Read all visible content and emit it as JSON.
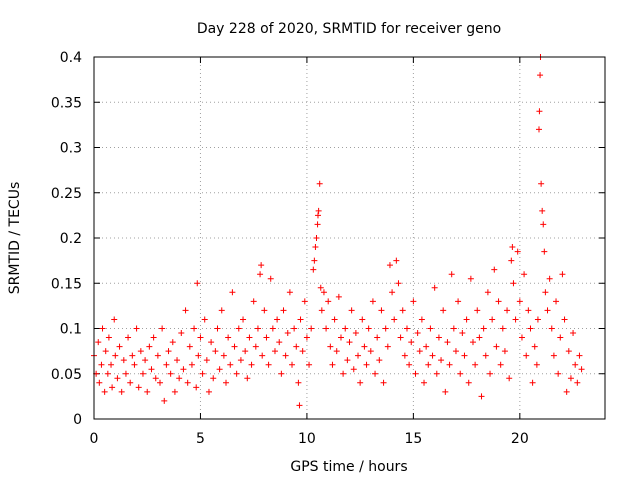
{
  "chart_data": {
    "type": "scatter",
    "title": "Day 228 of 2020, SRMTID for receiver geno",
    "xlabel": "GPS time / hours",
    "ylabel": "SRMTID / TECUs",
    "xlim": [
      0,
      24
    ],
    "ylim": [
      0,
      0.4
    ],
    "grid": true,
    "marker": "+",
    "series_color": "#ff0000",
    "x_ticks": [
      0,
      5,
      10,
      15,
      20
    ],
    "x_tick_labels": [
      "0",
      "5",
      "10",
      "15",
      "20"
    ],
    "y_ticks": [
      0,
      0.05,
      0.1,
      0.15,
      0.2,
      0.25,
      0.3,
      0.35,
      0.4
    ],
    "y_tick_labels": [
      "0",
      "0.05",
      "0.1",
      "0.15",
      "0.2",
      "0.25",
      "0.3",
      "0.35",
      "0.4"
    ],
    "series": [
      {
        "name": "SRMTID",
        "points": [
          [
            0.0,
            0.07
          ],
          [
            0.1,
            0.05
          ],
          [
            0.2,
            0.085
          ],
          [
            0.25,
            0.04
          ],
          [
            0.35,
            0.06
          ],
          [
            0.4,
            0.1
          ],
          [
            0.5,
            0.03
          ],
          [
            0.55,
            0.075
          ],
          [
            0.65,
            0.05
          ],
          [
            0.7,
            0.09
          ],
          [
            0.8,
            0.06
          ],
          [
            0.85,
            0.035
          ],
          [
            0.95,
            0.11
          ],
          [
            1.0,
            0.07
          ],
          [
            1.1,
            0.045
          ],
          [
            1.2,
            0.08
          ],
          [
            1.3,
            0.03
          ],
          [
            1.4,
            0.065
          ],
          [
            1.5,
            0.05
          ],
          [
            1.6,
            0.09
          ],
          [
            1.7,
            0.04
          ],
          [
            1.8,
            0.07
          ],
          [
            1.9,
            0.06
          ],
          [
            2.0,
            0.1
          ],
          [
            2.1,
            0.035
          ],
          [
            2.2,
            0.075
          ],
          [
            2.3,
            0.05
          ],
          [
            2.4,
            0.065
          ],
          [
            2.5,
            0.03
          ],
          [
            2.6,
            0.08
          ],
          [
            2.7,
            0.055
          ],
          [
            2.8,
            0.09
          ],
          [
            2.9,
            0.045
          ],
          [
            3.0,
            0.07
          ],
          [
            3.1,
            0.04
          ],
          [
            3.2,
            0.1
          ],
          [
            3.3,
            0.02
          ],
          [
            3.4,
            0.06
          ],
          [
            3.5,
            0.075
          ],
          [
            3.6,
            0.05
          ],
          [
            3.7,
            0.085
          ],
          [
            3.8,
            0.03
          ],
          [
            3.9,
            0.065
          ],
          [
            4.0,
            0.045
          ],
          [
            4.1,
            0.095
          ],
          [
            4.2,
            0.055
          ],
          [
            4.3,
            0.12
          ],
          [
            4.4,
            0.04
          ],
          [
            4.5,
            0.08
          ],
          [
            4.6,
            0.06
          ],
          [
            4.7,
            0.1
          ],
          [
            4.8,
            0.035
          ],
          [
            4.85,
            0.15
          ],
          [
            4.9,
            0.07
          ],
          [
            5.0,
            0.09
          ],
          [
            5.1,
            0.05
          ],
          [
            5.2,
            0.11
          ],
          [
            5.3,
            0.065
          ],
          [
            5.4,
            0.03
          ],
          [
            5.5,
            0.085
          ],
          [
            5.6,
            0.045
          ],
          [
            5.7,
            0.075
          ],
          [
            5.8,
            0.1
          ],
          [
            5.9,
            0.055
          ],
          [
            6.0,
            0.12
          ],
          [
            6.1,
            0.07
          ],
          [
            6.2,
            0.04
          ],
          [
            6.3,
            0.09
          ],
          [
            6.4,
            0.06
          ],
          [
            6.5,
            0.14
          ],
          [
            6.6,
            0.08
          ],
          [
            6.7,
            0.05
          ],
          [
            6.8,
            0.1
          ],
          [
            6.9,
            0.065
          ],
          [
            7.0,
            0.11
          ],
          [
            7.1,
            0.075
          ],
          [
            7.2,
            0.045
          ],
          [
            7.3,
            0.09
          ],
          [
            7.4,
            0.06
          ],
          [
            7.5,
            0.13
          ],
          [
            7.6,
            0.08
          ],
          [
            7.7,
            0.1
          ],
          [
            7.8,
            0.16
          ],
          [
            7.85,
            0.17
          ],
          [
            7.9,
            0.07
          ],
          [
            8.0,
            0.12
          ],
          [
            8.1,
            0.09
          ],
          [
            8.2,
            0.06
          ],
          [
            8.3,
            0.155
          ],
          [
            8.4,
            0.1
          ],
          [
            8.5,
            0.075
          ],
          [
            8.6,
            0.11
          ],
          [
            8.7,
            0.085
          ],
          [
            8.8,
            0.05
          ],
          [
            8.9,
            0.12
          ],
          [
            9.0,
            0.07
          ],
          [
            9.1,
            0.095
          ],
          [
            9.2,
            0.14
          ],
          [
            9.3,
            0.06
          ],
          [
            9.4,
            0.1
          ],
          [
            9.5,
            0.08
          ],
          [
            9.6,
            0.04
          ],
          [
            9.65,
            0.015
          ],
          [
            9.7,
            0.11
          ],
          [
            9.8,
            0.075
          ],
          [
            9.9,
            0.13
          ],
          [
            10.0,
            0.09
          ],
          [
            10.1,
            0.06
          ],
          [
            10.2,
            0.1
          ],
          [
            10.3,
            0.165
          ],
          [
            10.35,
            0.175
          ],
          [
            10.4,
            0.19
          ],
          [
            10.45,
            0.2
          ],
          [
            10.5,
            0.215
          ],
          [
            10.52,
            0.225
          ],
          [
            10.55,
            0.23
          ],
          [
            10.6,
            0.26
          ],
          [
            10.65,
            0.145
          ],
          [
            10.7,
            0.12
          ],
          [
            10.8,
            0.14
          ],
          [
            10.9,
            0.1
          ],
          [
            11.0,
            0.13
          ],
          [
            11.1,
            0.08
          ],
          [
            11.2,
            0.06
          ],
          [
            11.3,
            0.11
          ],
          [
            11.4,
            0.075
          ],
          [
            11.5,
            0.135
          ],
          [
            11.6,
            0.09
          ],
          [
            11.7,
            0.05
          ],
          [
            11.8,
            0.1
          ],
          [
            11.9,
            0.065
          ],
          [
            12.0,
            0.085
          ],
          [
            12.1,
            0.12
          ],
          [
            12.2,
            0.055
          ],
          [
            12.3,
            0.095
          ],
          [
            12.4,
            0.07
          ],
          [
            12.5,
            0.04
          ],
          [
            12.6,
            0.11
          ],
          [
            12.7,
            0.08
          ],
          [
            12.8,
            0.06
          ],
          [
            12.9,
            0.1
          ],
          [
            13.0,
            0.075
          ],
          [
            13.1,
            0.13
          ],
          [
            13.2,
            0.05
          ],
          [
            13.3,
            0.09
          ],
          [
            13.4,
            0.065
          ],
          [
            13.5,
            0.12
          ],
          [
            13.6,
            0.04
          ],
          [
            13.7,
            0.1
          ],
          [
            13.8,
            0.08
          ],
          [
            13.9,
            0.17
          ],
          [
            14.0,
            0.14
          ],
          [
            14.1,
            0.11
          ],
          [
            14.2,
            0.175
          ],
          [
            14.3,
            0.15
          ],
          [
            14.4,
            0.09
          ],
          [
            14.5,
            0.12
          ],
          [
            14.6,
            0.07
          ],
          [
            14.7,
            0.1
          ],
          [
            14.8,
            0.06
          ],
          [
            14.9,
            0.085
          ],
          [
            15.0,
            0.13
          ],
          [
            15.1,
            0.05
          ],
          [
            15.2,
            0.095
          ],
          [
            15.3,
            0.075
          ],
          [
            15.4,
            0.11
          ],
          [
            15.5,
            0.04
          ],
          [
            15.6,
            0.08
          ],
          [
            15.7,
            0.06
          ],
          [
            15.8,
            0.1
          ],
          [
            15.9,
            0.07
          ],
          [
            16.0,
            0.145
          ],
          [
            16.1,
            0.05
          ],
          [
            16.2,
            0.09
          ],
          [
            16.3,
            0.065
          ],
          [
            16.4,
            0.12
          ],
          [
            16.5,
            0.03
          ],
          [
            16.6,
            0.085
          ],
          [
            16.7,
            0.06
          ],
          [
            16.8,
            0.16
          ],
          [
            16.9,
            0.1
          ],
          [
            17.0,
            0.075
          ],
          [
            17.1,
            0.13
          ],
          [
            17.2,
            0.05
          ],
          [
            17.3,
            0.095
          ],
          [
            17.4,
            0.07
          ],
          [
            17.5,
            0.11
          ],
          [
            17.6,
            0.04
          ],
          [
            17.7,
            0.155
          ],
          [
            17.8,
            0.085
          ],
          [
            17.9,
            0.06
          ],
          [
            18.0,
            0.12
          ],
          [
            18.1,
            0.09
          ],
          [
            18.2,
            0.025
          ],
          [
            18.3,
            0.1
          ],
          [
            18.4,
            0.07
          ],
          [
            18.5,
            0.14
          ],
          [
            18.6,
            0.05
          ],
          [
            18.7,
            0.11
          ],
          [
            18.8,
            0.165
          ],
          [
            18.9,
            0.08
          ],
          [
            19.0,
            0.13
          ],
          [
            19.1,
            0.06
          ],
          [
            19.2,
            0.1
          ],
          [
            19.3,
            0.075
          ],
          [
            19.4,
            0.12
          ],
          [
            19.5,
            0.045
          ],
          [
            19.6,
            0.175
          ],
          [
            19.65,
            0.19
          ],
          [
            19.7,
            0.15
          ],
          [
            19.8,
            0.11
          ],
          [
            19.9,
            0.185
          ],
          [
            20.0,
            0.13
          ],
          [
            20.1,
            0.09
          ],
          [
            20.2,
            0.16
          ],
          [
            20.3,
            0.07
          ],
          [
            20.4,
            0.12
          ],
          [
            20.5,
            0.1
          ],
          [
            20.6,
            0.04
          ],
          [
            20.7,
            0.08
          ],
          [
            20.8,
            0.06
          ],
          [
            20.85,
            0.11
          ],
          [
            20.9,
            0.32
          ],
          [
            20.92,
            0.34
          ],
          [
            20.95,
            0.38
          ],
          [
            20.97,
            0.4
          ],
          [
            21.0,
            0.26
          ],
          [
            21.05,
            0.23
          ],
          [
            21.1,
            0.215
          ],
          [
            21.15,
            0.185
          ],
          [
            21.2,
            0.14
          ],
          [
            21.3,
            0.12
          ],
          [
            21.4,
            0.155
          ],
          [
            21.5,
            0.1
          ],
          [
            21.6,
            0.07
          ],
          [
            21.7,
            0.13
          ],
          [
            21.8,
            0.05
          ],
          [
            21.9,
            0.09
          ],
          [
            22.0,
            0.16
          ],
          [
            22.1,
            0.11
          ],
          [
            22.2,
            0.03
          ],
          [
            22.3,
            0.075
          ],
          [
            22.4,
            0.045
          ],
          [
            22.5,
            0.095
          ],
          [
            22.6,
            0.06
          ],
          [
            22.7,
            0.04
          ],
          [
            22.8,
            0.07
          ],
          [
            22.9,
            0.055
          ]
        ]
      }
    ]
  }
}
